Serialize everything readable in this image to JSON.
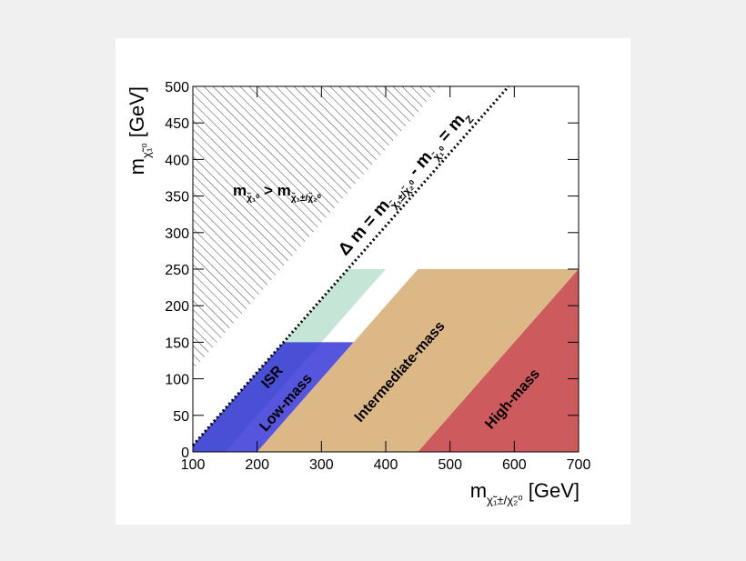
{
  "chart_data": {
    "type": "region",
    "xlim": [
      100,
      700
    ],
    "ylim": [
      0,
      500
    ],
    "xticks": [
      100,
      200,
      300,
      400,
      500,
      600,
      700
    ],
    "yticks": [
      0,
      50,
      100,
      150,
      200,
      250,
      300,
      350,
      400,
      450,
      500
    ],
    "x_label": [
      "m",
      "χ̃₁±/χ̃₂⁰",
      " [GeV]"
    ],
    "y_label": [
      "m",
      "χ̃₁⁰",
      " [GeV]"
    ],
    "regions": [
      {
        "name": "ISR",
        "color": "#8ccbb0",
        "points": [
          [
            100,
            9
          ],
          [
            341,
            250
          ],
          [
            400,
            250
          ],
          [
            150,
            0
          ],
          [
            100,
            0
          ]
        ]
      },
      {
        "name": "Low-mass",
        "color": "#2b2bd6",
        "points": [
          [
            100,
            9
          ],
          [
            241,
            150
          ],
          [
            350,
            150
          ],
          [
            200,
            0
          ],
          [
            100,
            0
          ]
        ]
      },
      {
        "name": "Intermediate-mass",
        "color": "#ddb887",
        "points": [
          [
            200,
            0
          ],
          [
            450,
            250
          ],
          [
            700,
            250
          ],
          [
            450,
            0
          ]
        ]
      },
      {
        "name": "High-mass",
        "color": "#cd5b5d",
        "points": [
          [
            450,
            0
          ],
          [
            700,
            250
          ],
          [
            700,
            0
          ]
        ]
      }
    ],
    "excluded_region": {
      "points": [
        [
          100,
          112
        ],
        [
          100,
          500
        ],
        [
          485,
          500
        ]
      ]
    },
    "line": {
      "x": [
        100,
        591
      ],
      "y": [
        9,
        500
      ]
    },
    "annotations": [
      {
        "parts": [
          "m",
          "χ̃₁⁰",
          " > m",
          "χ̃₁±/χ̃₂⁰"
        ]
      },
      {
        "parts": [
          "Δ m = m",
          "χ̃₁±/χ̃₂⁰",
          " - m",
          "χ̃₁⁰",
          " = m",
          "Z"
        ]
      }
    ]
  }
}
